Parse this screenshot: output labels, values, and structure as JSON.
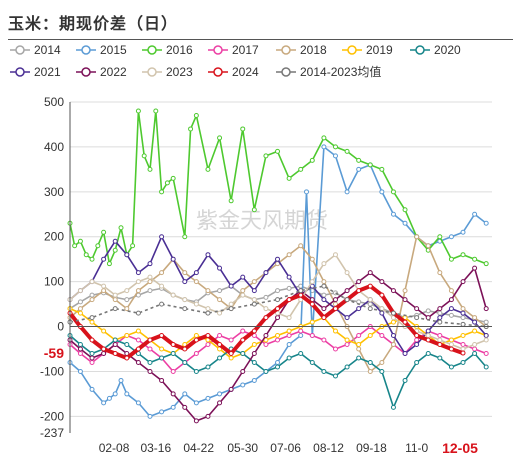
{
  "title": "玉米：期现价差（日）",
  "watermark": "紫金天风期货",
  "chart_data": {
    "type": "line",
    "ylim": [
      -237,
      500
    ],
    "y_ticks": [
      500,
      400,
      300,
      200,
      100,
      0,
      -100,
      -200,
      -237
    ],
    "x_ticks": [
      "02-08",
      "03-16",
      "04-22",
      "05-30",
      "07-06",
      "08-12",
      "09-18",
      "11-0"
    ],
    "x_range": [
      "01-01",
      "12-31"
    ],
    "current_x_label": "12-05",
    "current_value": -59,
    "grid": true,
    "legend_position": "top",
    "series": [
      {
        "name": "2014",
        "color": "#a6a6a6",
        "marker": "circle",
        "x": [
          1,
          10,
          20,
          30,
          40,
          50,
          60,
          70,
          80,
          90,
          100,
          110,
          120,
          130,
          140,
          150,
          160,
          170,
          180,
          190,
          200,
          210,
          220,
          230,
          240,
          250,
          260,
          270,
          280,
          290,
          300,
          310,
          320,
          330,
          340,
          350,
          360
        ],
        "values": [
          40,
          55,
          70,
          75,
          65,
          60,
          70,
          80,
          85,
          70,
          60,
          55,
          75,
          80,
          90,
          70,
          60,
          65,
          80,
          85,
          90,
          80,
          70,
          75,
          60,
          55,
          50,
          40,
          30,
          20,
          25,
          35,
          30,
          25,
          20,
          15,
          10
        ]
      },
      {
        "name": "2015",
        "color": "#5b9bd5",
        "marker": "circle",
        "x": [
          1,
          10,
          20,
          30,
          35,
          40,
          45,
          50,
          60,
          70,
          80,
          90,
          100,
          110,
          120,
          130,
          140,
          150,
          160,
          170,
          180,
          190,
          200,
          205,
          210,
          220,
          230,
          240,
          250,
          260,
          270,
          280,
          290,
          300,
          310,
          320,
          330,
          340,
          350,
          360
        ],
        "values": [
          -80,
          -100,
          -140,
          -170,
          -160,
          -150,
          -120,
          -150,
          -170,
          -200,
          -190,
          -180,
          -150,
          -170,
          -160,
          -150,
          -140,
          -130,
          -120,
          -100,
          -80,
          -40,
          -20,
          300,
          -20,
          400,
          380,
          300,
          350,
          360,
          300,
          250,
          230,
          200,
          180,
          190,
          200,
          210,
          250,
          230
        ]
      },
      {
        "name": "2016",
        "color": "#4ec92f",
        "marker": "circle",
        "x": [
          1,
          5,
          10,
          15,
          20,
          25,
          30,
          35,
          40,
          45,
          50,
          55,
          60,
          65,
          70,
          75,
          80,
          85,
          90,
          100,
          105,
          110,
          120,
          130,
          140,
          150,
          160,
          170,
          180,
          190,
          200,
          210,
          220,
          230,
          240,
          250,
          260,
          270,
          280,
          290,
          300,
          310,
          320,
          330,
          340,
          350,
          360
        ],
        "values": [
          230,
          180,
          190,
          160,
          150,
          180,
          210,
          140,
          170,
          220,
          160,
          180,
          480,
          380,
          350,
          480,
          300,
          320,
          330,
          200,
          440,
          470,
          350,
          420,
          280,
          440,
          260,
          380,
          390,
          330,
          350,
          370,
          420,
          400,
          390,
          370,
          360,
          350,
          300,
          260,
          200,
          170,
          200,
          150,
          160,
          150,
          140
        ]
      },
      {
        "name": "2017",
        "color": "#ec3fa4",
        "marker": "circle",
        "x": [
          1,
          10,
          20,
          30,
          40,
          50,
          60,
          70,
          80,
          90,
          100,
          110,
          120,
          130,
          140,
          150,
          160,
          170,
          180,
          190,
          200,
          210,
          220,
          230,
          240,
          250,
          260,
          270,
          280,
          290,
          300,
          310,
          320,
          330,
          340,
          350,
          360
        ],
        "values": [
          -40,
          -60,
          -80,
          -60,
          -40,
          -20,
          -30,
          -50,
          -70,
          -100,
          -80,
          -60,
          -40,
          -20,
          -30,
          -10,
          -20,
          -40,
          -30,
          -20,
          -10,
          -20,
          -30,
          -50,
          -40,
          -20,
          0,
          -20,
          -40,
          -60,
          -30,
          -10,
          -20,
          -30,
          -40,
          -50,
          -60
        ]
      },
      {
        "name": "2018",
        "color": "#c8a97e",
        "marker": "circle",
        "x": [
          1,
          10,
          20,
          30,
          40,
          50,
          60,
          70,
          80,
          90,
          100,
          110,
          120,
          130,
          140,
          150,
          160,
          170,
          180,
          190,
          200,
          210,
          220,
          230,
          240,
          250,
          260,
          270,
          280,
          290,
          300,
          310,
          320,
          330,
          340,
          350,
          360
        ],
        "values": [
          20,
          40,
          60,
          80,
          60,
          40,
          80,
          100,
          120,
          150,
          120,
          100,
          80,
          60,
          40,
          80,
          100,
          120,
          140,
          160,
          180,
          150,
          100,
          50,
          0,
          -50,
          -100,
          -80,
          -40,
          80,
          200,
          180,
          120,
          80,
          40,
          20,
          0
        ]
      },
      {
        "name": "2019",
        "color": "#ffc000",
        "marker": "circle",
        "x": [
          1,
          10,
          20,
          30,
          40,
          50,
          60,
          70,
          80,
          90,
          100,
          110,
          120,
          130,
          140,
          150,
          160,
          170,
          180,
          190,
          200,
          210,
          220,
          230,
          240,
          250,
          260,
          270,
          280,
          290,
          300,
          310,
          320,
          330,
          340,
          350,
          360
        ],
        "values": [
          40,
          30,
          10,
          -10,
          -30,
          -20,
          -10,
          -30,
          -50,
          -60,
          -40,
          -20,
          -30,
          -50,
          -70,
          -60,
          -40,
          -30,
          -20,
          -10,
          0,
          10,
          20,
          -10,
          -30,
          -40,
          -20,
          0,
          10,
          20,
          0,
          -20,
          -40,
          -30,
          -20,
          -10,
          -20
        ]
      },
      {
        "name": "2020",
        "color": "#17858a",
        "marker": "circle",
        "x": [
          1,
          10,
          20,
          30,
          40,
          50,
          60,
          70,
          80,
          90,
          100,
          110,
          120,
          130,
          140,
          150,
          160,
          170,
          180,
          190,
          200,
          210,
          220,
          230,
          240,
          250,
          260,
          270,
          280,
          290,
          300,
          310,
          320,
          330,
          340,
          350,
          360
        ],
        "values": [
          -20,
          -40,
          -60,
          -50,
          -30,
          -40,
          -60,
          -80,
          -70,
          -60,
          -80,
          -100,
          -90,
          -70,
          -50,
          -60,
          -80,
          -100,
          -90,
          -70,
          -60,
          -80,
          -100,
          -110,
          -90,
          -70,
          -80,
          -100,
          -180,
          -120,
          -80,
          -60,
          -70,
          -90,
          -80,
          -60,
          -90
        ]
      },
      {
        "name": "2021",
        "color": "#4a2f94",
        "marker": "circle",
        "x": [
          1,
          10,
          20,
          30,
          40,
          50,
          60,
          70,
          80,
          90,
          100,
          110,
          120,
          130,
          140,
          150,
          160,
          170,
          180,
          190,
          200,
          210,
          220,
          230,
          240,
          250,
          260,
          270,
          280,
          290,
          300,
          310,
          320,
          330,
          340,
          350,
          360
        ],
        "values": [
          60,
          80,
          100,
          150,
          190,
          160,
          120,
          140,
          200,
          150,
          100,
          120,
          160,
          130,
          90,
          110,
          80,
          120,
          150,
          110,
          70,
          90,
          60,
          40,
          20,
          40,
          60,
          30,
          -20,
          -60,
          -40,
          -10,
          20,
          40,
          30,
          10,
          -20
        ]
      },
      {
        "name": "2022",
        "color": "#7c1158",
        "marker": "circle",
        "x": [
          1,
          10,
          20,
          30,
          40,
          50,
          60,
          70,
          80,
          90,
          100,
          110,
          120,
          130,
          140,
          150,
          160,
          170,
          180,
          190,
          200,
          210,
          220,
          230,
          240,
          250,
          260,
          270,
          280,
          290,
          300,
          310,
          320,
          330,
          340,
          350,
          360
        ],
        "values": [
          -30,
          -50,
          -70,
          -60,
          -40,
          -60,
          -80,
          -100,
          -120,
          -150,
          -180,
          -210,
          -200,
          -170,
          -140,
          -100,
          -60,
          -20,
          20,
          60,
          80,
          60,
          40,
          60,
          80,
          100,
          120,
          100,
          80,
          60,
          40,
          20,
          40,
          60,
          100,
          130,
          40
        ]
      },
      {
        "name": "2023",
        "color": "#d1c4ad",
        "marker": "circle",
        "x": [
          1,
          10,
          20,
          30,
          40,
          50,
          60,
          70,
          80,
          90,
          100,
          110,
          120,
          130,
          140,
          150,
          160,
          170,
          180,
          190,
          200,
          210,
          220,
          230,
          240,
          250,
          260,
          270,
          280,
          290,
          300,
          310,
          320,
          330,
          340,
          350,
          360
        ],
        "values": [
          60,
          80,
          100,
          90,
          70,
          80,
          100,
          110,
          90,
          70,
          60,
          50,
          40,
          30,
          50,
          70,
          60,
          40,
          30,
          20,
          60,
          100,
          140,
          160,
          120,
          80,
          60,
          40,
          20,
          0,
          -10,
          -20,
          -30,
          -40,
          -50,
          -40,
          -30
        ]
      },
      {
        "name": "2024",
        "color": "#d8121b",
        "marker": "circle",
        "x": [
          1,
          10,
          20,
          30,
          40,
          50,
          60,
          70,
          80,
          90,
          100,
          110,
          120,
          130,
          140,
          150,
          160,
          170,
          180,
          190,
          200,
          210,
          220,
          230,
          240,
          250,
          260,
          270,
          280,
          290,
          300,
          310,
          320,
          330,
          340
        ],
        "values": [
          30,
          0,
          -30,
          -50,
          -60,
          -70,
          -50,
          -30,
          -20,
          -40,
          -50,
          -30,
          -20,
          -40,
          -60,
          -30,
          -10,
          20,
          40,
          60,
          70,
          50,
          20,
          40,
          60,
          80,
          90,
          70,
          30,
          10,
          -20,
          -30,
          -40,
          -50,
          -59
        ]
      },
      {
        "name": "2014-2023均值",
        "color": "#777777",
        "marker": "circle",
        "x": [
          1,
          20,
          40,
          60,
          80,
          100,
          120,
          140,
          160,
          180,
          200,
          220,
          240,
          260,
          280,
          300,
          320,
          340,
          360
        ],
        "values": [
          10,
          20,
          40,
          30,
          50,
          40,
          30,
          40,
          50,
          60,
          80,
          90,
          60,
          40,
          30,
          20,
          10,
          5,
          0
        ]
      }
    ]
  }
}
